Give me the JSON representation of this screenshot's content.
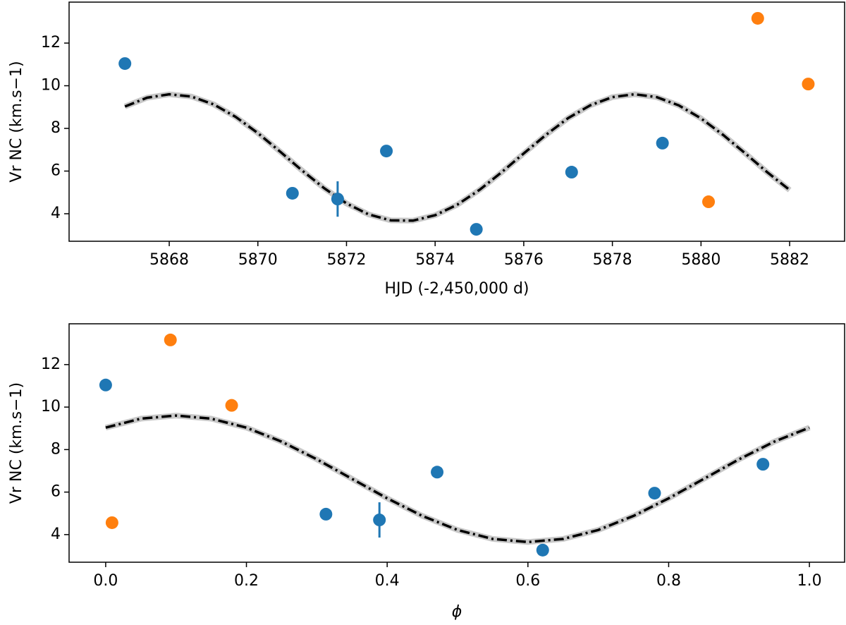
{
  "chart_data": [
    {
      "type": "scatter",
      "xlabel": "HJD (-2,450,000 d)",
      "ylabel": "Vr NC (km.s−1)",
      "xlim": [
        5865.74,
        5883.24
      ],
      "ylim": [
        2.71,
        13.92
      ],
      "xticks": [
        5868,
        5870,
        5872,
        5874,
        5876,
        5878,
        5880,
        5882
      ],
      "yticks": [
        4,
        6,
        8,
        10,
        12
      ],
      "series": [
        {
          "type": "line",
          "color": "#000000",
          "band_color": "#c8c8c8",
          "linestyle": "dashdot",
          "x": [
            5867,
            5867.5,
            5868,
            5868.5,
            5869,
            5869.5,
            5870,
            5870.5,
            5871,
            5871.5,
            5872,
            5872.5,
            5873,
            5873.5,
            5874,
            5874.5,
            5875,
            5875.5,
            5876,
            5876.5,
            5877,
            5877.5,
            5878,
            5878.5,
            5879,
            5879.5,
            5880,
            5880.5,
            5881,
            5881.5,
            5882
          ],
          "values": [
            9.026,
            9.439,
            9.598,
            9.492,
            9.128,
            8.539,
            7.78,
            6.915,
            6.025,
            5.189,
            4.481,
            3.968,
            3.69,
            3.677,
            3.929,
            4.422,
            5.118,
            5.943,
            6.826,
            7.692,
            8.48,
            9.083,
            9.466,
            9.6,
            9.467,
            9.078,
            8.47,
            7.694,
            6.826,
            5.938,
            5.112
          ]
        },
        {
          "type": "scatter",
          "color": "#1f77b4",
          "x": [
            5867.0,
            5870.78,
            5871.8,
            5872.9,
            5874.93,
            5877.08,
            5879.13
          ],
          "values": [
            11.04,
            4.96,
            4.69,
            6.94,
            3.27,
            5.95,
            7.31
          ],
          "errors": [
            null,
            null,
            0.83,
            null,
            null,
            null,
            null
          ]
        },
        {
          "type": "scatter",
          "color": "#ff7f0e",
          "x": [
            5880.17,
            5881.28,
            5882.42
          ],
          "values": [
            4.56,
            13.16,
            10.08
          ]
        }
      ]
    },
    {
      "type": "scatter",
      "xlabel": "ϕ",
      "ylabel": "Vr NC (km.s−1)",
      "xlim": [
        -0.052,
        1.05
      ],
      "ylim": [
        2.7,
        13.92
      ],
      "xticks": [
        {
          "value": 0,
          "label": "0.0"
        },
        0.2,
        0.4,
        0.6,
        0.8,
        {
          "value": 1,
          "label": "1.0"
        }
      ],
      "yticks": [
        4,
        6,
        8,
        10,
        12
      ],
      "series": [
        {
          "type": "line",
          "color": "#000000",
          "band_color": "#c8c8c8",
          "linestyle": "dashdot",
          "x": [
            0,
            0.05,
            0.1,
            0.15,
            0.2,
            0.25,
            0.3,
            0.35,
            0.4,
            0.45,
            0.5,
            0.55,
            0.6,
            0.65,
            0.7,
            0.75,
            0.8,
            0.85,
            0.9,
            0.95,
            1.0
          ],
          "values": [
            9.032,
            9.455,
            9.6,
            9.455,
            9.032,
            8.374,
            7.544,
            6.625,
            5.706,
            4.876,
            4.218,
            3.795,
            3.65,
            3.795,
            4.218,
            4.876,
            5.706,
            6.625,
            7.544,
            8.374,
            9.032
          ]
        },
        {
          "type": "scatter",
          "color": "#1f77b4",
          "x": [
            0.0,
            0.313,
            0.389,
            0.471,
            0.621,
            0.78,
            0.934
          ],
          "values": [
            11.04,
            4.96,
            4.69,
            6.94,
            3.27,
            5.95,
            7.31
          ],
          "errors": [
            null,
            null,
            0.83,
            null,
            null,
            null,
            null
          ]
        },
        {
          "type": "scatter",
          "color": "#ff7f0e",
          "x": [
            0.009,
            0.092,
            0.179
          ],
          "values": [
            4.56,
            13.16,
            10.08
          ]
        }
      ]
    }
  ]
}
